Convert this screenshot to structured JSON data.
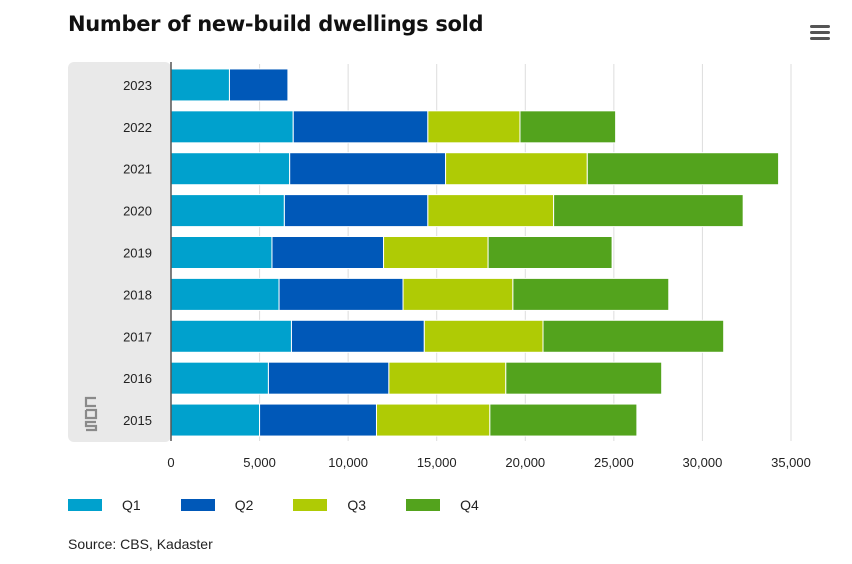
{
  "title": "Number of new-build dwellings sold",
  "menu": {
    "icon": "hamburger-menu-icon"
  },
  "source": "Source: CBS, Kadaster",
  "logo": {
    "icon": "cbs-logo-icon",
    "text": "cbs"
  },
  "colors": {
    "Q1": "#00a1cd",
    "Q2": "#0058b8",
    "Q3": "#afcb05",
    "Q4": "#53a31d",
    "panel": "#e9e9e9",
    "grid": "#dddddd"
  },
  "chart_data": {
    "type": "bar",
    "orientation": "horizontal",
    "stacked": true,
    "categories": [
      "2023",
      "2022",
      "2021",
      "2020",
      "2019",
      "2018",
      "2017",
      "2016",
      "2015"
    ],
    "series": [
      {
        "name": "Q1",
        "values": [
          3300,
          6900,
          6700,
          6400,
          5700,
          6100,
          6800,
          5500,
          5000
        ]
      },
      {
        "name": "Q2",
        "values": [
          3300,
          7600,
          8800,
          8100,
          6300,
          7000,
          7500,
          6800,
          6600
        ]
      },
      {
        "name": "Q3",
        "values": [
          null,
          5200,
          8000,
          7100,
          5900,
          6200,
          6700,
          6600,
          6400
        ]
      },
      {
        "name": "Q4",
        "values": [
          null,
          5400,
          10800,
          10700,
          7000,
          8800,
          10200,
          8800,
          8300
        ]
      }
    ],
    "xlim": [
      0,
      35000
    ],
    "x_ticks": [
      0,
      5000,
      10000,
      15000,
      20000,
      25000,
      30000,
      35000
    ],
    "x_tick_labels": [
      "0",
      "5,000",
      "10,000",
      "15,000",
      "20,000",
      "25,000",
      "30,000",
      "35,000"
    ],
    "grid": "vertical",
    "legend": "bottom-left"
  }
}
